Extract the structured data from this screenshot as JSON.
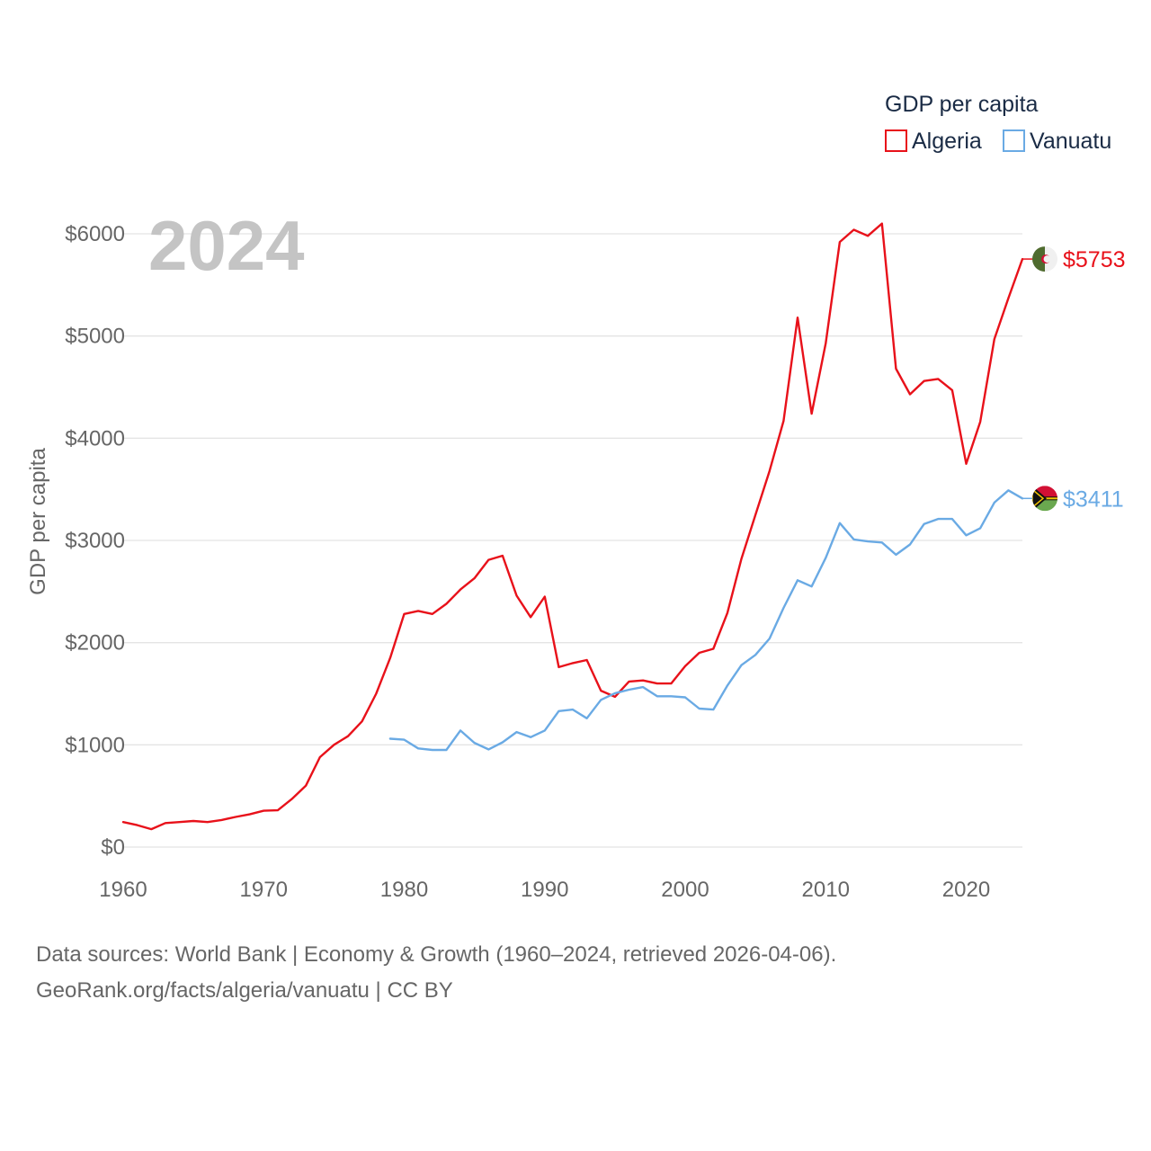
{
  "chart_data": {
    "type": "line",
    "year_label": "2024",
    "legend_title": "GDP per capita",
    "ylabel": "GDP per capita",
    "xlabel": "",
    "xlim": [
      1960,
      2024
    ],
    "ylim": [
      0,
      6500
    ],
    "x_ticks": [
      1960,
      1970,
      1980,
      1990,
      2000,
      2010,
      2020
    ],
    "x_tick_labels": [
      "1960",
      "1970",
      "1980",
      "1990",
      "2000",
      "2010",
      "2020"
    ],
    "y_ticks": [
      0,
      1000,
      2000,
      3000,
      4000,
      5000,
      6000
    ],
    "y_tick_labels": [
      "$0",
      "$1000",
      "$2000",
      "$3000",
      "$4000",
      "$5000",
      "$6000"
    ],
    "series": [
      {
        "name": "Algeria",
        "color": "#e8111a",
        "end_label": "$5753",
        "flag_icon": "algeria-flag-icon",
        "x": [
          1960,
          1961,
          1962,
          1963,
          1964,
          1965,
          1966,
          1967,
          1968,
          1969,
          1970,
          1971,
          1972,
          1973,
          1974,
          1975,
          1976,
          1977,
          1978,
          1979,
          1980,
          1981,
          1982,
          1983,
          1984,
          1985,
          1986,
          1987,
          1988,
          1989,
          1990,
          1991,
          1992,
          1993,
          1994,
          1995,
          1996,
          1997,
          1998,
          1999,
          2000,
          2001,
          2002,
          2003,
          2004,
          2005,
          2006,
          2007,
          2008,
          2009,
          2010,
          2011,
          2012,
          2013,
          2014,
          2015,
          2016,
          2017,
          2018,
          2019,
          2020,
          2021,
          2022,
          2023,
          2024
        ],
        "values": [
          245,
          215,
          175,
          235,
          245,
          255,
          245,
          265,
          295,
          320,
          355,
          360,
          470,
          600,
          880,
          1000,
          1085,
          1230,
          1500,
          1850,
          2280,
          2310,
          2280,
          2380,
          2520,
          2630,
          2810,
          2850,
          2460,
          2250,
          2450,
          1760,
          1800,
          1830,
          1530,
          1470,
          1620,
          1630,
          1600,
          1600,
          1770,
          1900,
          1940,
          2290,
          2820,
          3250,
          3680,
          4170,
          5180,
          4240,
          4930,
          5920,
          6040,
          5980,
          6100,
          4680,
          4430,
          4560,
          4580,
          4470,
          3750,
          4160,
          4970,
          5370,
          5753
        ]
      },
      {
        "name": "Vanuatu",
        "color": "#6aaae4",
        "end_label": "$3411",
        "flag_icon": "vanuatu-flag-icon",
        "x": [
          1979,
          1980,
          1981,
          1982,
          1983,
          1984,
          1985,
          1986,
          1987,
          1988,
          1989,
          1990,
          1991,
          1992,
          1993,
          1994,
          1995,
          1996,
          1997,
          1998,
          1999,
          2000,
          2001,
          2002,
          2003,
          2004,
          2005,
          2006,
          2007,
          2008,
          2009,
          2010,
          2011,
          2012,
          2013,
          2014,
          2015,
          2016,
          2017,
          2018,
          2019,
          2020,
          2021,
          2022,
          2023,
          2024
        ],
        "values": [
          1060,
          1050,
          965,
          950,
          950,
          1140,
          1020,
          955,
          1025,
          1125,
          1075,
          1140,
          1330,
          1345,
          1260,
          1440,
          1505,
          1540,
          1565,
          1475,
          1475,
          1465,
          1355,
          1345,
          1580,
          1780,
          1880,
          2040,
          2340,
          2610,
          2550,
          2830,
          3170,
          3010,
          2990,
          2980,
          2860,
          2960,
          3160,
          3210,
          3210,
          3050,
          3120,
          3370,
          3490,
          3411
        ]
      }
    ]
  },
  "footer": {
    "source_line": "Data sources: World Bank | Economy & Growth (1960–2024, retrieved 2026-04-06).",
    "license_line": "GeoRank.org/facts/algeria/vanuatu | CC BY"
  }
}
